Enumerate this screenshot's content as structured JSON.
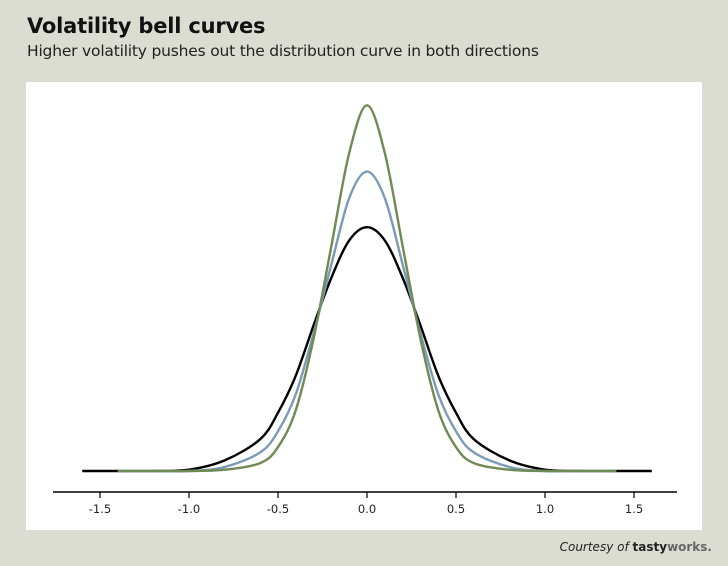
{
  "header": {
    "title": "Volatility bell curves",
    "subtitle": "Higher volatility pushes out the distribution curve in both directions"
  },
  "credit": {
    "prefix": "Courtesy of",
    "brand_part1": "tasty",
    "brand_part2": "works."
  },
  "chart_data": {
    "type": "line",
    "title": "Volatility bell curves",
    "subtitle": "Higher volatility pushes out the distribution curve in both directions",
    "xlabel": "",
    "ylabel": "",
    "xlim": [
      -1.75,
      1.75
    ],
    "x_ticks": [
      -1.5,
      -1.0,
      -0.5,
      0.0,
      0.5,
      1.0,
      1.5
    ],
    "x_tick_labels": [
      "-1.5",
      "-1.0",
      "-0.5",
      "0.0",
      "0.5",
      "1.0",
      "1.5"
    ],
    "grid": false,
    "legend": "none",
    "series": [
      {
        "color": "#000000",
        "x": [
          -1.6,
          -1.4,
          -1.2,
          -1.0,
          -0.8,
          -0.6,
          -0.5,
          -0.4,
          -0.3,
          -0.2,
          -0.1,
          0.0,
          0.1,
          0.2,
          0.3,
          0.4,
          0.5,
          0.6,
          0.8,
          1.0,
          1.2,
          1.4,
          1.6
        ],
        "y": [
          0.0,
          0.0,
          0.0,
          0.005,
          0.04,
          0.12,
          0.22,
          0.36,
          0.55,
          0.73,
          0.87,
          0.92,
          0.87,
          0.73,
          0.55,
          0.36,
          0.22,
          0.12,
          0.04,
          0.005,
          0.0,
          0.0,
          0.0
        ]
      },
      {
        "color": "#7a9ab5",
        "x": [
          -1.4,
          -1.2,
          -1.0,
          -0.8,
          -0.6,
          -0.5,
          -0.4,
          -0.3,
          -0.2,
          -0.1,
          0.0,
          0.1,
          0.2,
          0.3,
          0.4,
          0.5,
          0.6,
          0.8,
          1.0,
          1.2,
          1.4
        ],
        "y": [
          0.0,
          0.0,
          0.0,
          0.015,
          0.07,
          0.15,
          0.29,
          0.52,
          0.78,
          1.03,
          1.13,
          1.03,
          0.78,
          0.52,
          0.29,
          0.15,
          0.07,
          0.015,
          0.0,
          0.0,
          0.0
        ]
      },
      {
        "color": "#6f8a55",
        "x": [
          -1.4,
          -1.2,
          -1.0,
          -0.8,
          -0.6,
          -0.5,
          -0.4,
          -0.3,
          -0.2,
          -0.1,
          0.0,
          0.1,
          0.2,
          0.3,
          0.4,
          0.5,
          0.6,
          0.8,
          1.0,
          1.2,
          1.4
        ],
        "y": [
          0.0,
          0.0,
          0.0,
          0.005,
          0.03,
          0.09,
          0.23,
          0.5,
          0.85,
          1.2,
          1.38,
          1.2,
          0.85,
          0.5,
          0.23,
          0.09,
          0.03,
          0.005,
          0.0,
          0.0,
          0.0
        ]
      }
    ],
    "colors": {
      "background": "#dbddd2",
      "panel": "#ffffff",
      "axis": "#000000"
    }
  }
}
